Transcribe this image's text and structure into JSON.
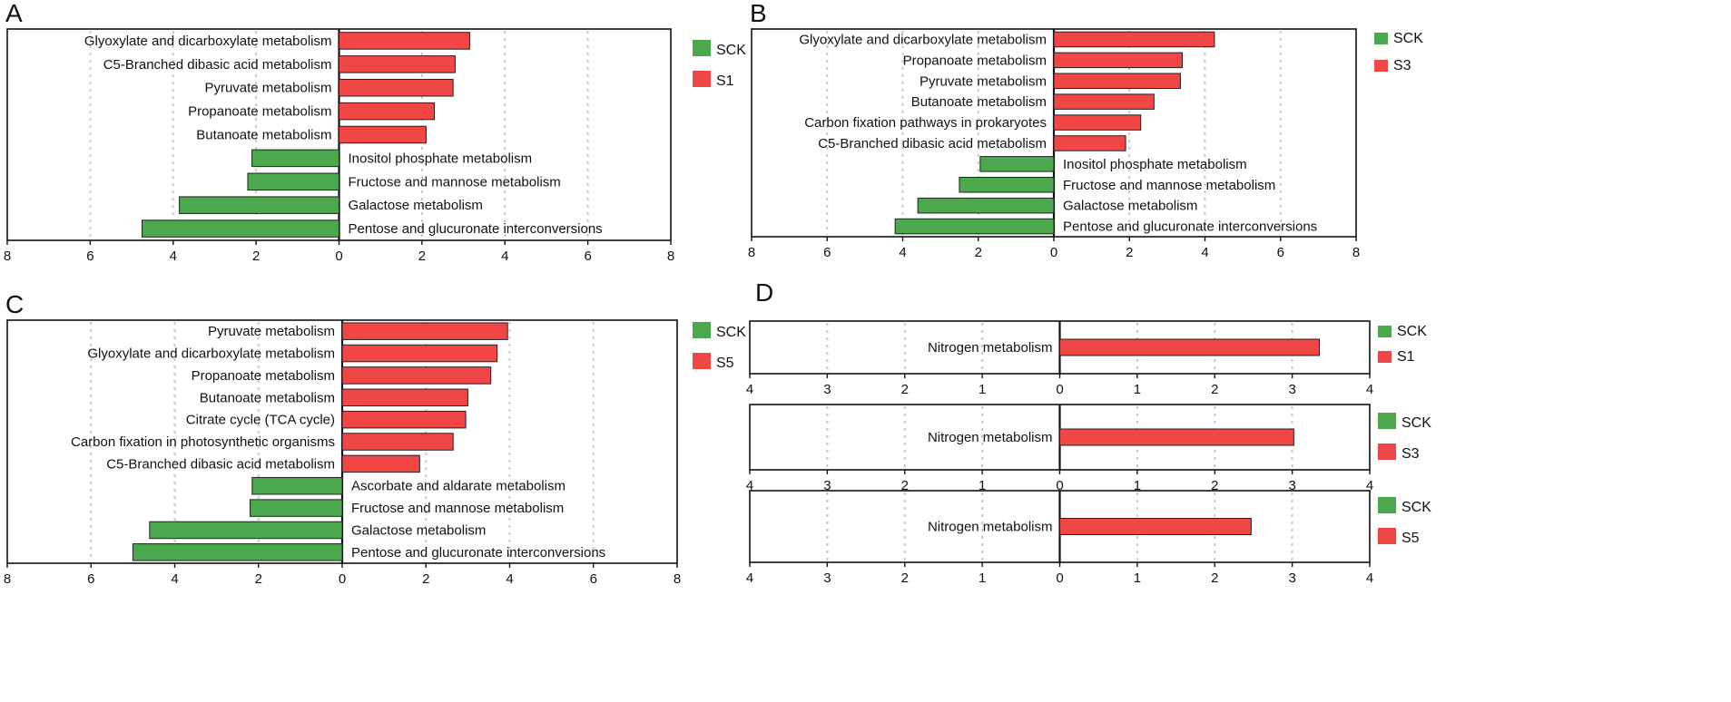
{
  "colors": {
    "up": "#f04646",
    "down": "#4ca84c"
  },
  "chart_data": [
    {
      "panel": "A",
      "type": "bar",
      "orientation": "horizontal-diverging",
      "xlim": [
        -8,
        8
      ],
      "ticks": [
        8,
        6,
        4,
        2,
        0,
        2,
        4,
        6,
        8
      ],
      "legend": [
        "SCK",
        "S1"
      ],
      "grid": true,
      "categories": [
        "Glyoxylate and dicarboxylate metabolism",
        "C5-Branched dibasic acid metabolism",
        "Pyruvate metabolism",
        "Propanoate metabolism",
        "Butanoate metabolism",
        "Inositol phosphate metabolism",
        "Fructose and mannose metabolism",
        "Galactose metabolism",
        "Pentose and glucuronate interconversions"
      ],
      "values": [
        3.15,
        2.8,
        2.75,
        2.3,
        2.1,
        -2.1,
        -2.2,
        -3.85,
        -4.75
      ]
    },
    {
      "panel": "B",
      "type": "bar",
      "orientation": "horizontal-diverging",
      "xlim": [
        -8,
        8
      ],
      "ticks": [
        8,
        6,
        4,
        2,
        0,
        2,
        4,
        6,
        8
      ],
      "legend": [
        "SCK",
        "S3"
      ],
      "grid": true,
      "categories": [
        "Glyoxylate and dicarboxylate metabolism",
        "Propanoate metabolism",
        "Pyruvate metabolism",
        "Butanoate metabolism",
        "Carbon fixation pathways in prokaryotes",
        "C5-Branched dibasic acid metabolism",
        "Inositol phosphate metabolism",
        "Fructose and mannose metabolism",
        "Galactose metabolism",
        "Pentose and glucuronate interconversions"
      ],
      "values": [
        4.25,
        3.4,
        3.35,
        2.65,
        2.3,
        1.9,
        -1.95,
        -2.5,
        -3.6,
        -4.2
      ]
    },
    {
      "panel": "C",
      "type": "bar",
      "orientation": "horizontal-diverging",
      "xlim": [
        -8,
        8
      ],
      "ticks": [
        8,
        6,
        4,
        2,
        0,
        2,
        4,
        6,
        8
      ],
      "legend": [
        "SCK",
        "S5"
      ],
      "grid": true,
      "categories": [
        "Pyruvate metabolism",
        "Glyoxylate and dicarboxylate metabolism",
        "Propanoate metabolism",
        "Butanoate metabolism",
        "Citrate cycle (TCA cycle)",
        "Carbon fixation in photosynthetic organisms",
        "C5-Branched dibasic acid metabolism",
        "Ascorbate and aldarate metabolism",
        "Fructose and mannose metabolism",
        "Galactose metabolism",
        "Pentose and glucuronate interconversions"
      ],
      "values": [
        3.95,
        3.7,
        3.55,
        3.0,
        2.95,
        2.65,
        1.85,
        -2.15,
        -2.2,
        -4.6,
        -5.0
      ]
    },
    {
      "panel": "D",
      "type": "bar",
      "orientation": "horizontal-diverging",
      "xlim": [
        -4,
        4
      ],
      "ticks": [
        4,
        3,
        2,
        1,
        0,
        1,
        2,
        3,
        4
      ],
      "legend": [
        "SCK",
        "S1"
      ],
      "grid": true,
      "categories": [
        "Nitrogen metabolism"
      ],
      "values": [
        3.35
      ]
    },
    {
      "panel": "",
      "type": "bar",
      "orientation": "horizontal-diverging",
      "xlim": [
        -4,
        4
      ],
      "ticks": [
        4,
        3,
        2,
        1,
        0,
        1,
        2,
        3,
        4
      ],
      "legend": [
        "SCK",
        "S3"
      ],
      "grid": true,
      "categories": [
        "Nitrogen metabolism"
      ],
      "values": [
        3.02
      ]
    },
    {
      "panel": "",
      "type": "bar",
      "orientation": "horizontal-diverging",
      "xlim": [
        -4,
        4
      ],
      "ticks": [
        4,
        3,
        2,
        1,
        0,
        1,
        2,
        3,
        4
      ],
      "legend": [
        "SCK",
        "S5"
      ],
      "grid": true,
      "categories": [
        "Nitrogen metabolism"
      ],
      "values": [
        2.47
      ]
    }
  ]
}
